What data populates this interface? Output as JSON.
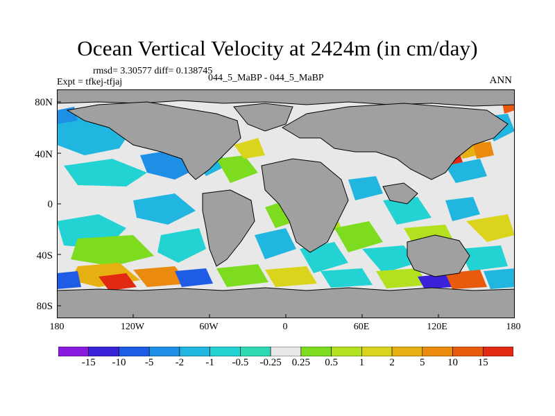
{
  "title": "Ocean Vertical Velocity at 2424m (in cm/day)",
  "stats_line": "rmsd= 3.30577 diff= 0.138745",
  "experiment_line": "Expt = tfkej-tfjaj",
  "case_line": "044_5_MaBP - 044_5_MaBP",
  "season": "ANN",
  "lat_ticks": [
    {
      "value": 80,
      "label": "80N"
    },
    {
      "value": 40,
      "label": "40N"
    },
    {
      "value": 0,
      "label": "0"
    },
    {
      "value": -40,
      "label": "40S"
    },
    {
      "value": -80,
      "label": "80S"
    }
  ],
  "lon_ticks": [
    {
      "value": -180,
      "label": "180"
    },
    {
      "value": -120,
      "label": "120W"
    },
    {
      "value": -60,
      "label": "60W"
    },
    {
      "value": 0,
      "label": "0"
    },
    {
      "value": 60,
      "label": "60E"
    },
    {
      "value": 120,
      "label": "120E"
    },
    {
      "value": 180,
      "label": "180"
    }
  ],
  "colorbar": {
    "colors": [
      "#8a1ae0",
      "#3a22d8",
      "#1e5ce6",
      "#1f8fe6",
      "#21b6e0",
      "#23d2d2",
      "#2ed9b3",
      "#e8e8e8",
      "#7ddc1f",
      "#b3e01f",
      "#dbd41c",
      "#e7b012",
      "#ea8a0e",
      "#e85a0e",
      "#e22a12"
    ],
    "labels": [
      "-15",
      "-10",
      "-5",
      "-2",
      "-1",
      "-0.5",
      "-0.25",
      "0.25",
      "0.5",
      "1",
      "2",
      "5",
      "10",
      "15"
    ]
  },
  "colors": {
    "land": "#a0a0a0",
    "ocean_neutral": "#e8e8e8",
    "coast": "#000000"
  }
}
